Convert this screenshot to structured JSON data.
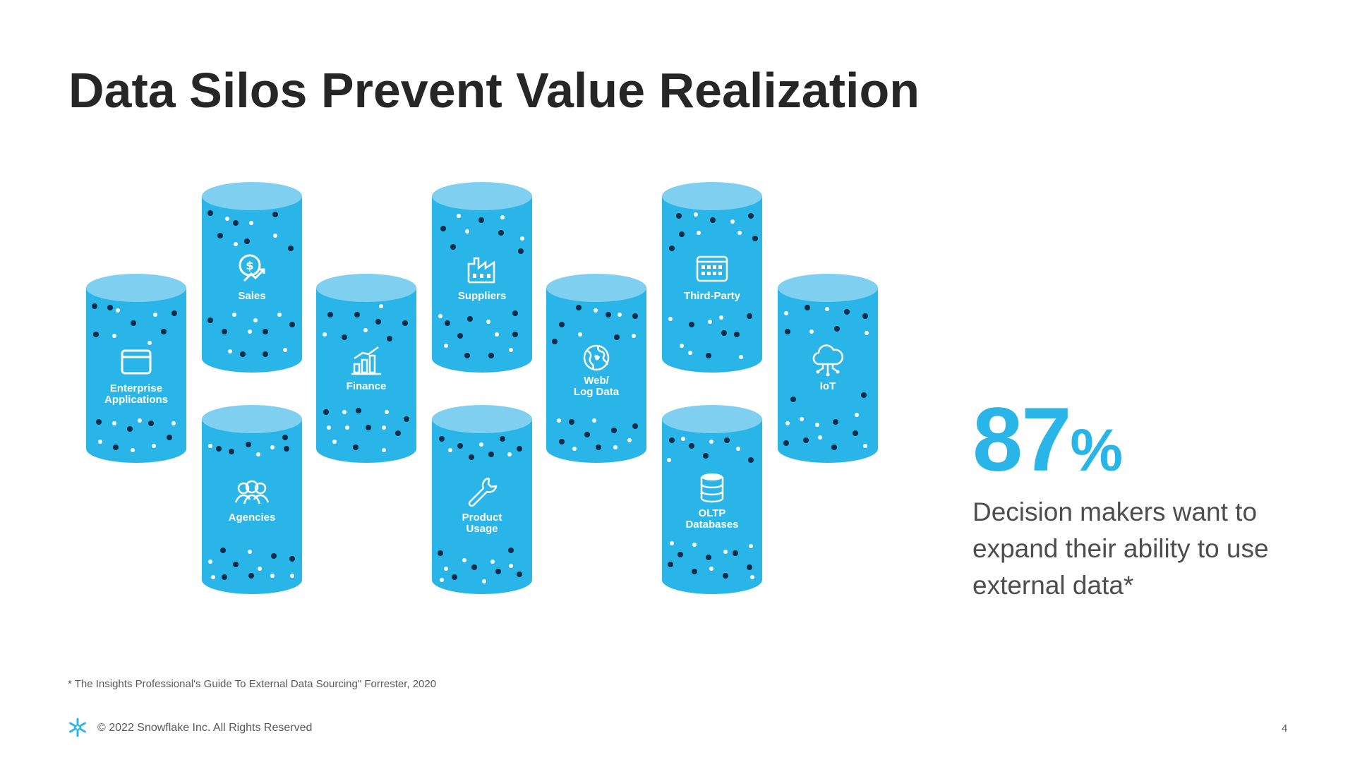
{
  "slide": {
    "title": "Data Silos Prevent Value Realization",
    "page_number": "4"
  },
  "silos": [
    {
      "label": "Enterprise\nApplications",
      "icon": "app-window-icon"
    },
    {
      "label": "Sales",
      "icon": "dollar-magnifier-icon"
    },
    {
      "label": "Agencies",
      "icon": "people-group-icon"
    },
    {
      "label": "Finance",
      "icon": "bar-chart-icon"
    },
    {
      "label": "Suppliers",
      "icon": "factory-icon"
    },
    {
      "label": "Product\nUsage",
      "icon": "wrench-icon"
    },
    {
      "label": "Web/\nLog Data",
      "icon": "globe-icon"
    },
    {
      "label": "Third-Party",
      "icon": "calendar-grid-icon"
    },
    {
      "label": "OLTP\nDatabases",
      "icon": "database-icon"
    },
    {
      "label": "IoT",
      "icon": "cloud-network-icon"
    }
  ],
  "stat": {
    "number": "87",
    "percent": "%",
    "description": "Decision makers want to expand their ability to use external data*"
  },
  "footnote": "* The Insights Professional's Guide To External Data Sourcing\" Forrester, 2020",
  "copyright": "© 2022 Snowflake Inc. All Rights Reserved",
  "colors": {
    "cylinder_body": "#29b5e8",
    "cylinder_top": "#7fd0f0",
    "accent": "#29b5e8",
    "title_text": "#262626"
  }
}
